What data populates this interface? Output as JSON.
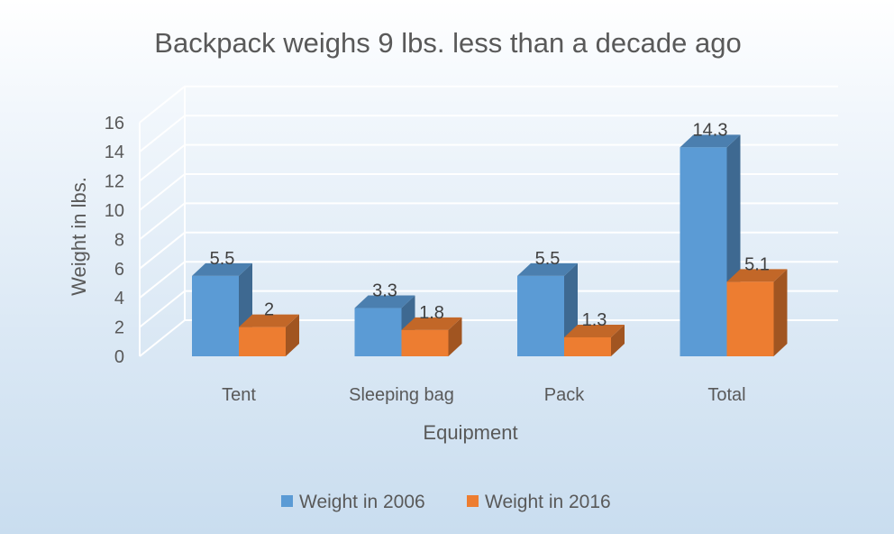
{
  "chart_data": {
    "type": "bar",
    "title": "Backpack weighs 9 lbs. less than a decade ago",
    "xlabel": "Equipment",
    "ylabel": "Weight in lbs.",
    "categories": [
      "Tent",
      "Sleeping bag",
      "Pack",
      "Total"
    ],
    "series": [
      {
        "name": "Weight in 2006",
        "values": [
          5.5,
          3.3,
          5.5,
          14.3
        ],
        "color": "#5b9bd5"
      },
      {
        "name": "Weight in 2016",
        "values": [
          2,
          1.8,
          1.3,
          5.1
        ],
        "color": "#ed7d31"
      }
    ],
    "data_labels": [
      [
        "5.5",
        "3.3",
        "5.5",
        "14.3"
      ],
      [
        "2",
        "1.8",
        "1.3",
        "5.1"
      ]
    ],
    "yticks": [
      0,
      2,
      4,
      6,
      8,
      10,
      12,
      14,
      16
    ],
    "ylim": [
      0,
      16
    ],
    "grid": true,
    "style": "3d-clustered-column",
    "legend_position": "bottom"
  }
}
